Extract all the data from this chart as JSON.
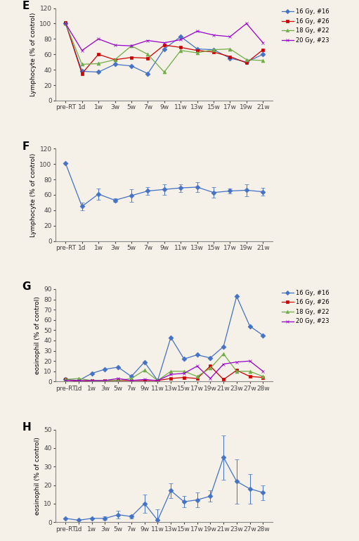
{
  "bg_color": "#F5F0E8",
  "panel_E": {
    "label": "E",
    "xlabel_ticks": [
      "pre-RT",
      "1d",
      "1w",
      "3w",
      "5w",
      "7w",
      "9w",
      "11w",
      "13w",
      "15w",
      "17w",
      "19w",
      "21w"
    ],
    "ylabel": "Lymphocyte (% of control)",
    "ylim": [
      0,
      120
    ],
    "yticks": [
      0,
      20,
      40,
      60,
      80,
      100,
      120
    ],
    "series": [
      {
        "label": "16 Gy, #16",
        "color": "#4472C4",
        "marker": "D",
        "values": [
          100,
          38,
          37,
          47,
          45,
          35,
          67,
          83,
          67,
          66,
          55,
          50,
          60
        ]
      },
      {
        "label": "16 Gy, #26",
        "color": "#CC0000",
        "marker": "s",
        "values": [
          101,
          35,
          60,
          53,
          56,
          55,
          72,
          69,
          65,
          63,
          57,
          49,
          66
        ]
      },
      {
        "label": "18 Gy, #22",
        "color": "#70AD47",
        "marker": "^",
        "values": [
          100,
          47,
          48,
          53,
          71,
          60,
          37,
          65,
          62,
          66,
          67,
          53,
          52
        ]
      },
      {
        "label": "20 Gy, #23",
        "color": "#9900CC",
        "marker": "x",
        "values": [
          100,
          65,
          80,
          72,
          71,
          78,
          75,
          79,
          90,
          85,
          83,
          100,
          75
        ]
      }
    ]
  },
  "panel_F": {
    "label": "F",
    "xlabel_ticks": [
      "pre-RT",
      "1d",
      "1w",
      "3w",
      "5w",
      "7w",
      "9w",
      "11w",
      "13w",
      "15w",
      "17w",
      "19w",
      "21w"
    ],
    "ylabel": "Lymphocyte (% of control)",
    "ylim": [
      0,
      120
    ],
    "yticks": [
      0,
      20,
      40,
      60,
      80,
      100,
      120
    ],
    "color": "#4472C4",
    "marker": "D",
    "values": [
      101,
      45,
      61,
      53,
      59,
      65,
      67,
      69,
      70,
      63,
      65,
      66,
      64
    ],
    "errors": [
      0,
      5,
      7,
      2,
      8,
      5,
      7,
      5,
      6,
      7,
      3,
      8,
      5
    ]
  },
  "panel_G": {
    "label": "G",
    "xlabel_ticks": [
      "pre-RT",
      "1d",
      "1w",
      "3w",
      "5w",
      "7w",
      "9w",
      "11w",
      "13w",
      "15w",
      "17w",
      "19w",
      "21w",
      "23w",
      "27w",
      "28w"
    ],
    "ylabel": "eosinophil (% of control)",
    "ylim": [
      0,
      90
    ],
    "yticks": [
      0,
      10,
      20,
      30,
      40,
      50,
      60,
      70,
      80,
      90
    ],
    "series": [
      {
        "label": "16 Gy, #16",
        "color": "#4472C4",
        "marker": "D",
        "values": [
          2,
          1,
          8,
          12,
          14,
          5,
          19,
          1,
          43,
          22,
          26,
          23,
          34,
          83,
          54,
          45
        ]
      },
      {
        "label": "16 Gy, #26",
        "color": "#CC0000",
        "marker": "s",
        "values": [
          2,
          0,
          1,
          1,
          1,
          1,
          1,
          1,
          3,
          4,
          3,
          15,
          2,
          11,
          5,
          4
        ]
      },
      {
        "label": "18 Gy, #22",
        "color": "#70AD47",
        "marker": "^",
        "values": [
          2,
          3,
          1,
          1,
          1,
          3,
          11,
          1,
          10,
          10,
          5,
          13,
          27,
          10,
          10,
          5
        ]
      },
      {
        "label": "20 Gy, #23",
        "color": "#9900CC",
        "marker": "x",
        "values": [
          1,
          1,
          1,
          1,
          3,
          1,
          2,
          1,
          7,
          8,
          15,
          3,
          17,
          19,
          20,
          10
        ]
      }
    ]
  },
  "panel_H": {
    "label": "H",
    "xlabel_ticks": [
      "pre-RT",
      "1d",
      "1w",
      "3w",
      "5w",
      "7w",
      "9w",
      "11w",
      "13w",
      "15w",
      "17w",
      "19w",
      "21w",
      "23w",
      "27w",
      "28w"
    ],
    "ylabel": "eosinophil (% of control)",
    "ylim": [
      0,
      50
    ],
    "yticks": [
      0,
      10,
      20,
      30,
      40,
      50
    ],
    "color": "#4472C4",
    "marker": "D",
    "values": [
      2,
      1,
      2,
      2,
      4,
      3,
      10,
      1,
      17,
      11,
      12,
      14,
      35,
      22,
      18,
      16
    ],
    "errors": [
      0,
      0,
      0,
      1,
      2,
      1,
      5,
      6,
      4,
      3,
      4,
      3,
      12,
      12,
      8,
      4
    ]
  }
}
